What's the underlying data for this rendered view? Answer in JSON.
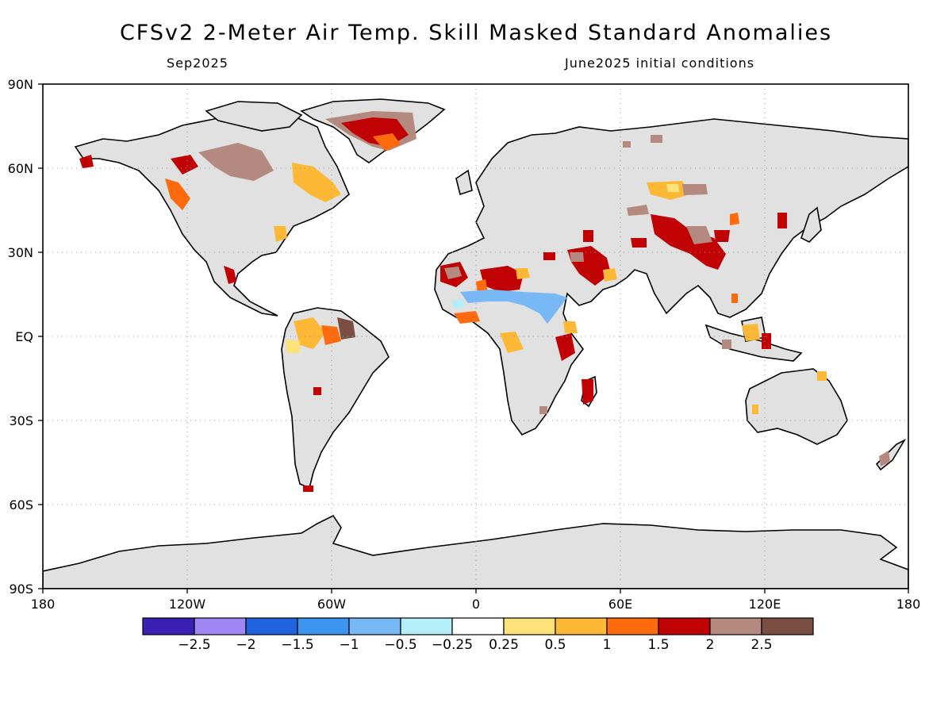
{
  "header": {
    "title": "CFSv2 2-Meter Air Temp. Skill Masked Standard Anomalies",
    "valid_month": "Sep2025",
    "init": "June2025 initial conditions"
  },
  "axes": {
    "lat_labels": [
      "90N",
      "60N",
      "30N",
      "EQ",
      "30S",
      "60S",
      "90S"
    ],
    "lon_labels": [
      "180",
      "120W",
      "60W",
      "0",
      "60E",
      "120E",
      "180"
    ]
  },
  "colorbar": {
    "colors": [
      "#3a20b4",
      "#9e86f5",
      "#1f63e0",
      "#3c95ee",
      "#78b8f5",
      "#b4eef8",
      "#ffffff",
      "#fde27a",
      "#fdb935",
      "#fe6a0c",
      "#c00205",
      "#b48a80",
      "#7a4e42"
    ],
    "labels": [
      "-2.5",
      "-2",
      "-1.5",
      "-1",
      "-0.5",
      "-0.25",
      "0.25",
      "0.5",
      "1",
      "1.5",
      "2",
      "2.5"
    ]
  },
  "land_color": "#e1e1e1"
}
